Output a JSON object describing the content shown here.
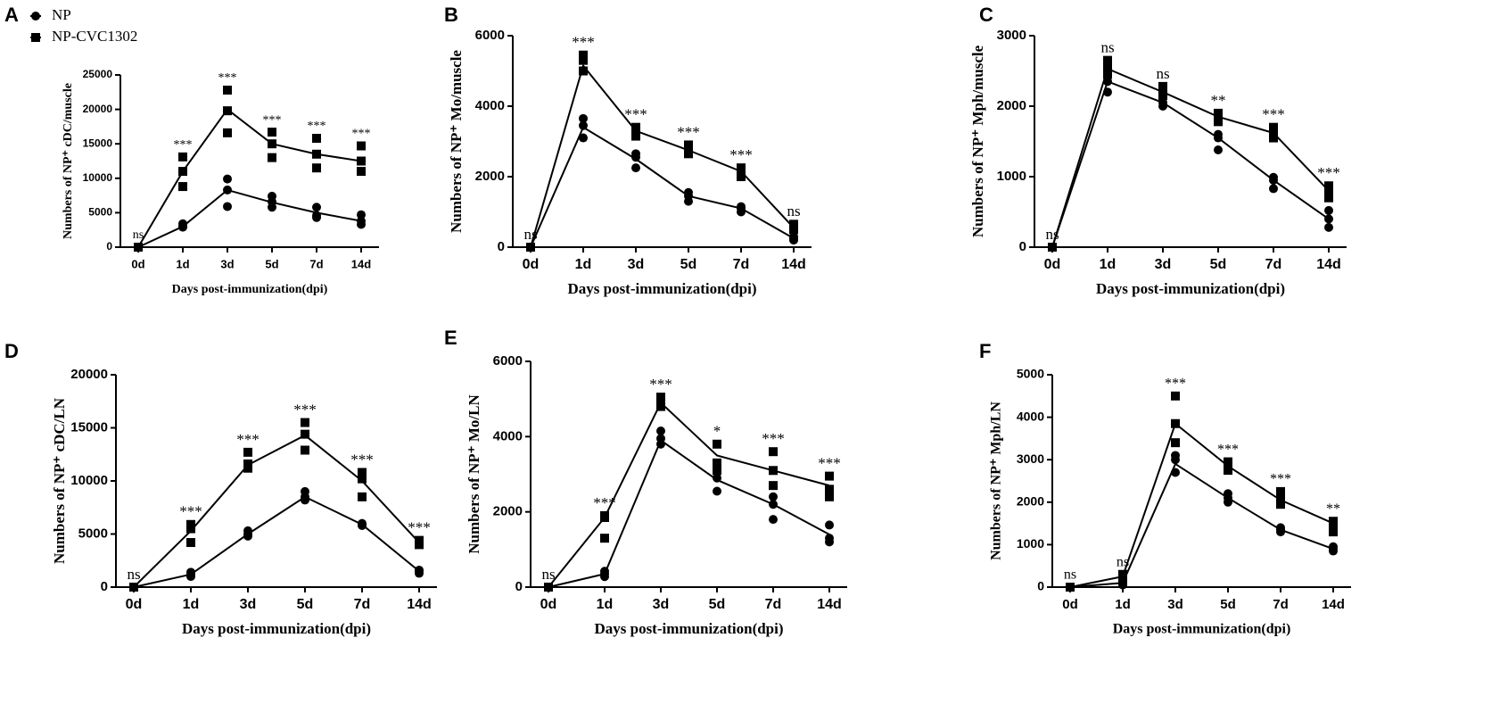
{
  "chart_data": [
    {
      "type": "line",
      "panel": "A",
      "ylabel": "Numbers of NP⁺ cDC/muscle",
      "xlabel": "Days post-immunization(dpi)",
      "categories": [
        "0d",
        "1d",
        "3d",
        "5d",
        "7d",
        "14d"
      ],
      "ylim": [
        0,
        25000
      ],
      "yticks": [
        0,
        5000,
        10000,
        15000,
        20000,
        25000
      ],
      "legend": "top-left",
      "annotations": [
        "ns",
        "***",
        "***",
        "***",
        "***",
        "***"
      ],
      "series": [
        {
          "name": "NP",
          "color": "#000000",
          "marker": "circle",
          "values": [
            0,
            3000,
            8300,
            6500,
            5000,
            3800
          ],
          "replicates": [
            [
              0,
              0,
              0
            ],
            [
              2900,
              3100,
              3400
            ],
            [
              5900,
              8300,
              9900
            ],
            [
              5800,
              6600,
              7400
            ],
            [
              4300,
              4600,
              5800
            ],
            [
              3300,
              3800,
              4700
            ]
          ]
        },
        {
          "name": "NP-CVC1302",
          "color": "#000000",
          "marker": "square",
          "values": [
            0,
            11000,
            20000,
            15000,
            13500,
            12500
          ],
          "replicates": [
            [
              0,
              0,
              0
            ],
            [
              8800,
              11000,
              13100
            ],
            [
              16600,
              19800,
              22800
            ],
            [
              13000,
              15000,
              16700
            ],
            [
              11500,
              13500,
              15800
            ],
            [
              11000,
              12500,
              14700
            ]
          ]
        }
      ]
    },
    {
      "type": "line",
      "panel": "B",
      "ylabel": "Numbers of NP⁺ Mo/muscle",
      "xlabel": "Days post-immunization(dpi)",
      "categories": [
        "0d",
        "1d",
        "3d",
        "5d",
        "7d",
        "14d"
      ],
      "ylim": [
        0,
        6000
      ],
      "yticks": [
        0,
        2000,
        4000,
        6000
      ],
      "annotations": [
        "ns",
        "***",
        "***",
        "***",
        "***",
        "ns"
      ],
      "series": [
        {
          "color": "#000000",
          "marker": "circle",
          "values": [
            0,
            3400,
            2500,
            1450,
            1100,
            250
          ],
          "replicates": [
            [
              0,
              0,
              0
            ],
            [
              3100,
              3450,
              3650
            ],
            [
              2250,
              2550,
              2650
            ],
            [
              1300,
              1450,
              1550
            ],
            [
              1000,
              1100,
              1150
            ],
            [
              200,
              250,
              300
            ]
          ]
        },
        {
          "color": "#000000",
          "marker": "square",
          "values": [
            0,
            5150,
            3300,
            2750,
            2150,
            550
          ],
          "replicates": [
            [
              0,
              0,
              0
            ],
            [
              5000,
              5300,
              5450
            ],
            [
              3150,
              3300,
              3400
            ],
            [
              2650,
              2800,
              2900
            ],
            [
              2000,
              2150,
              2250
            ],
            [
              500,
              550,
              650
            ]
          ]
        }
      ]
    },
    {
      "type": "line",
      "panel": "C",
      "ylabel": "Numbers of NP⁺ Mph/muscle",
      "xlabel": "Days post-immunization(dpi)",
      "categories": [
        "0d",
        "1d",
        "3d",
        "5d",
        "7d",
        "14d"
      ],
      "ylim": [
        0,
        3000
      ],
      "yticks": [
        0,
        1000,
        2000,
        3000
      ],
      "annotations": [
        "ns",
        "ns",
        "ns",
        "**",
        "***",
        "***"
      ],
      "series": [
        {
          "color": "#000000",
          "marker": "circle",
          "values": [
            0,
            2350,
            2050,
            1550,
            950,
            400
          ],
          "replicates": [
            [
              0,
              0,
              0
            ],
            [
              2200,
              2350,
              2450
            ],
            [
              2000,
              2050,
              2150
            ],
            [
              1380,
              1550,
              1600
            ],
            [
              830,
              950,
              990
            ],
            [
              280,
              400,
              520
            ]
          ]
        },
        {
          "color": "#000000",
          "marker": "square",
          "values": [
            0,
            2530,
            2200,
            1850,
            1620,
            800
          ],
          "replicates": [
            [
              0,
              0,
              0
            ],
            [
              2450,
              2530,
              2650
            ],
            [
              2150,
              2200,
              2280
            ],
            [
              1780,
              1850,
              1900
            ],
            [
              1550,
              1620,
              1700
            ],
            [
              700,
              800,
              870
            ]
          ]
        }
      ]
    },
    {
      "type": "line",
      "panel": "D",
      "ylabel": "Numbers of NP⁺ cDC/LN",
      "xlabel": "Days post-immunization(dpi)",
      "categories": [
        "0d",
        "1d",
        "3d",
        "5d",
        "7d",
        "14d"
      ],
      "ylim": [
        0,
        20000
      ],
      "yticks": [
        0,
        5000,
        10000,
        15000,
        20000
      ],
      "annotations": [
        "ns",
        "***",
        "***",
        "***",
        "***",
        "***"
      ],
      "series": [
        {
          "color": "#000000",
          "marker": "circle",
          "values": [
            0,
            1200,
            5000,
            8500,
            5900,
            1500
          ],
          "replicates": [
            [
              0,
              0,
              0
            ],
            [
              1000,
              1200,
              1400
            ],
            [
              4800,
              5000,
              5300
            ],
            [
              8200,
              8500,
              9000
            ],
            [
              5800,
              5900,
              6000
            ],
            [
              1300,
              1500,
              1600
            ]
          ]
        },
        {
          "color": "#000000",
          "marker": "square",
          "values": [
            0,
            5300,
            11500,
            14300,
            10000,
            4200
          ],
          "replicates": [
            [
              0,
              0,
              0
            ],
            [
              4200,
              5500,
              5900
            ],
            [
              11200,
              11600,
              12700
            ],
            [
              12900,
              14400,
              15500
            ],
            [
              8500,
              10200,
              10800
            ],
            [
              4000,
              4200,
              4400
            ]
          ]
        }
      ]
    },
    {
      "type": "line",
      "panel": "E",
      "ylabel": "Numbers of NP⁺ Mo/LN",
      "xlabel": "Days post-immunization(dpi)",
      "categories": [
        "0d",
        "1d",
        "3d",
        "5d",
        "7d",
        "14d"
      ],
      "ylim": [
        0,
        6000
      ],
      "yticks": [
        0,
        2000,
        4000,
        6000
      ],
      "annotations": [
        "ns",
        "***",
        "***",
        "*",
        "***",
        "***"
      ],
      "series": [
        {
          "color": "#000000",
          "marker": "circle",
          "values": [
            0,
            350,
            3900,
            2850,
            2200,
            1400
          ],
          "replicates": [
            [
              0,
              0,
              0
            ],
            [
              280,
              350,
              420
            ],
            [
              3800,
              3950,
              4150
            ],
            [
              2550,
              2900,
              3100
            ],
            [
              1800,
              2200,
              2400
            ],
            [
              1200,
              1300,
              1650
            ]
          ]
        },
        {
          "color": "#000000",
          "marker": "square",
          "values": [
            0,
            1850,
            4900,
            3500,
            3100,
            2700
          ],
          "replicates": [
            [
              0,
              0,
              0
            ],
            [
              1300,
              1850,
              1900
            ],
            [
              4800,
              4950,
              5050
            ],
            [
              3100,
              3300,
              3800
            ],
            [
              2700,
              3100,
              3600
            ],
            [
              2400,
              2600,
              2950
            ]
          ]
        }
      ]
    },
    {
      "type": "line",
      "panel": "F",
      "ylabel": "Numbers of NP⁺ Mph/LN",
      "xlabel": "Days post-immunization(dpi)",
      "categories": [
        "0d",
        "1d",
        "3d",
        "5d",
        "7d",
        "14d"
      ],
      "ylim": [
        0,
        5000
      ],
      "yticks": [
        0,
        1000,
        2000,
        3000,
        4000,
        5000
      ],
      "annotations": [
        "ns",
        "ns",
        "***",
        "***",
        "***",
        "**"
      ],
      "series": [
        {
          "color": "#000000",
          "marker": "circle",
          "values": [
            0,
            100,
            2900,
            2100,
            1350,
            900
          ],
          "replicates": [
            [
              0,
              0,
              0
            ],
            [
              50,
              100,
              150
            ],
            [
              2700,
              3000,
              3100
            ],
            [
              2000,
              2100,
              2200
            ],
            [
              1300,
              1350,
              1400
            ],
            [
              850,
              900,
              950
            ]
          ]
        },
        {
          "color": "#000000",
          "marker": "square",
          "values": [
            0,
            250,
            3850,
            2850,
            2050,
            1500
          ],
          "replicates": [
            [
              0,
              0,
              0
            ],
            [
              200,
              250,
              300
            ],
            [
              3400,
              3850,
              4500
            ],
            [
              2750,
              2850,
              2950
            ],
            [
              1950,
              2050,
              2250
            ],
            [
              1300,
              1500,
              1550
            ]
          ]
        }
      ]
    }
  ]
}
